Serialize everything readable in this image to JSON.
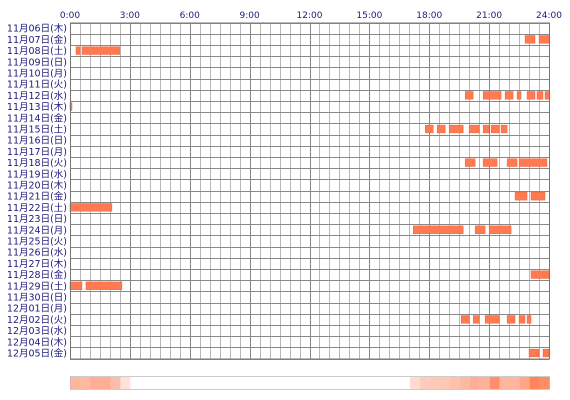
{
  "chart_data": {
    "type": "heatmap",
    "title": "",
    "x_ticks": [
      "0:00",
      "3:00",
      "6:00",
      "9:00",
      "12:00",
      "15:00",
      "18:00",
      "21:00",
      "24:00"
    ],
    "x_range_hours": [
      0,
      24
    ],
    "grid": true,
    "colors": {
      "bar": "#ff7a50",
      "bar_edge": "#e8542a",
      "grid_major": "#888888",
      "grid_minor": "#b8b8b8",
      "label": "#1a1a7a",
      "frame": "#777777"
    },
    "rows": [
      {
        "label": "11月06日(木)",
        "segments": []
      },
      {
        "label": "11月07日(金)",
        "segments": [
          [
            22.8,
            23.3
          ],
          [
            23.5,
            24.0
          ]
        ]
      },
      {
        "label": "11月08日(土)",
        "segments": [
          [
            0.3,
            0.5
          ],
          [
            0.6,
            2.5
          ]
        ]
      },
      {
        "label": "11月09日(日)",
        "segments": []
      },
      {
        "label": "11月10日(月)",
        "segments": []
      },
      {
        "label": "11月11日(火)",
        "segments": []
      },
      {
        "label": "11月12日(水)",
        "segments": [
          [
            19.8,
            20.2
          ],
          [
            20.7,
            21.6
          ],
          [
            21.8,
            22.2
          ],
          [
            22.4,
            22.6
          ],
          [
            22.9,
            23.3
          ],
          [
            23.4,
            23.7
          ],
          [
            23.8,
            24.0
          ]
        ]
      },
      {
        "label": "11月13日(木)",
        "segments": [
          [
            0.0,
            0.1
          ]
        ]
      },
      {
        "label": "11月14日(金)",
        "segments": []
      },
      {
        "label": "11月15日(土)",
        "segments": [
          [
            17.8,
            18.2
          ],
          [
            18.4,
            18.8
          ],
          [
            19.0,
            19.7
          ],
          [
            20.0,
            20.5
          ],
          [
            20.7,
            21.0
          ],
          [
            21.1,
            21.5
          ],
          [
            21.6,
            21.9
          ]
        ]
      },
      {
        "label": "11月16日(日)",
        "segments": []
      },
      {
        "label": "11月17日(月)",
        "segments": []
      },
      {
        "label": "11月18日(火)",
        "segments": [
          [
            19.8,
            20.3
          ],
          [
            20.7,
            21.4
          ],
          [
            21.9,
            22.4
          ],
          [
            22.5,
            23.9
          ]
        ]
      },
      {
        "label": "11月19日(水)",
        "segments": []
      },
      {
        "label": "11月20日(木)",
        "segments": []
      },
      {
        "label": "11月21日(金)",
        "segments": [
          [
            22.3,
            22.9
          ],
          [
            23.1,
            23.8
          ]
        ]
      },
      {
        "label": "11月22日(土)",
        "segments": [
          [
            0.0,
            2.1
          ]
        ]
      },
      {
        "label": "11月23日(日)",
        "segments": []
      },
      {
        "label": "11月24日(月)",
        "segments": [
          [
            17.2,
            19.7
          ],
          [
            20.3,
            20.8
          ],
          [
            21.0,
            22.1
          ]
        ]
      },
      {
        "label": "11月25日(火)",
        "segments": []
      },
      {
        "label": "11月26日(水)",
        "segments": []
      },
      {
        "label": "11月27日(木)",
        "segments": []
      },
      {
        "label": "11月28日(金)",
        "segments": [
          [
            23.1,
            24.0
          ]
        ]
      },
      {
        "label": "11月29日(土)",
        "segments": [
          [
            0.0,
            0.6
          ],
          [
            0.8,
            2.6
          ]
        ]
      },
      {
        "label": "11月30日(日)",
        "segments": []
      },
      {
        "label": "12月01日(月)",
        "segments": []
      },
      {
        "label": "12月02日(火)",
        "segments": [
          [
            19.6,
            20.0
          ],
          [
            20.2,
            20.5
          ],
          [
            20.8,
            21.5
          ],
          [
            21.9,
            22.3
          ],
          [
            22.5,
            22.8
          ],
          [
            22.9,
            23.1
          ]
        ]
      },
      {
        "label": "12月03日(水)",
        "segments": []
      },
      {
        "label": "12月04日(木)",
        "segments": []
      },
      {
        "label": "12月05日(金)",
        "segments": [
          [
            23.0,
            23.5
          ],
          [
            23.7,
            24.0
          ]
        ]
      }
    ]
  }
}
